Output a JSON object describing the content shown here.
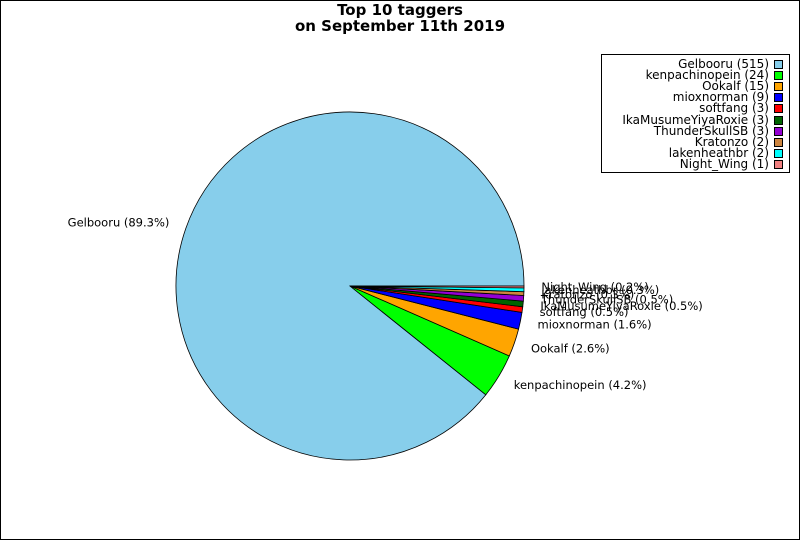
{
  "chart_data": {
    "type": "pie",
    "title_line1": "Top 10 taggers",
    "title_line2": "on September 11th 2019",
    "slices": [
      {
        "name": "Gelbooru",
        "value": 515,
        "legend": "Gelbooru (515)",
        "label": "Gelbooru (89.3%)",
        "color": "#87ceeb"
      },
      {
        "name": "kenpachinopein",
        "value": 24,
        "legend": "kenpachinopein (24)",
        "label": "kenpachinopein (4.2%)",
        "color": "#00ff00"
      },
      {
        "name": "Ookalf",
        "value": 15,
        "legend": "Ookalf (15)",
        "label": "Ookalf (2.6%)",
        "color": "#ffa500"
      },
      {
        "name": "mioxnorman",
        "value": 9,
        "legend": "mioxnorman (9)",
        "label": "mioxnorman (1.6%)",
        "color": "#0000ff"
      },
      {
        "name": "softfang",
        "value": 3,
        "legend": "softfang (3)",
        "label": "softfang (0.5%)",
        "color": "#ff0000"
      },
      {
        "name": "IkaMusumeYiyaRoxie",
        "value": 3,
        "legend": "IkaMusumeYiyaRoxie (3)",
        "label": "IkaMusumeYiyaRoxie (0.5%)",
        "color": "#006400"
      },
      {
        "name": "ThunderSkullSB",
        "value": 3,
        "legend": "ThunderSkullSB (3)",
        "label": "ThunderSkullSB (0.5%)",
        "color": "#9400d3"
      },
      {
        "name": "Kratonzo",
        "value": 2,
        "legend": "Kratonzo (2)",
        "label": "Kratonzo (0.3%)",
        "color": "#cd853f"
      },
      {
        "name": "lakenheathbr",
        "value": 2,
        "legend": "lakenheathbr (2)",
        "label": "lakenheathbr (0.3%)",
        "color": "#00ffff"
      },
      {
        "name": "Night_Wing",
        "value": 1,
        "legend": "Night_Wing (1)",
        "label": "Night_Wing (0.2%)",
        "color": "#f08080"
      }
    ],
    "legend_position": "top-right"
  }
}
